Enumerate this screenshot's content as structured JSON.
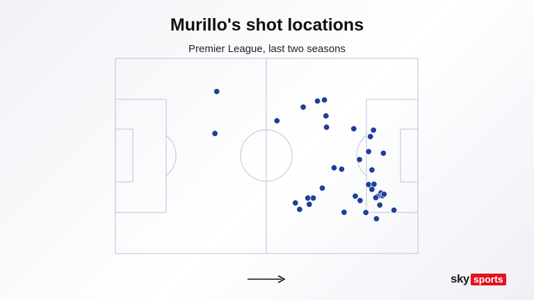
{
  "header": {
    "title": "Murillo's shot locations",
    "subtitle": "Premier League, last two seasons"
  },
  "logo": {
    "part1": "sky",
    "part2": "sports"
  },
  "colors": {
    "shot": "#1f3f99",
    "pitch_line": "#c8cbe0",
    "logo_red": "#e1141e"
  },
  "chart_data": {
    "type": "scatter",
    "title": "Murillo's shot locations",
    "subtitle": "Premier League, last two seasons",
    "xlabel": "",
    "ylabel": "",
    "xlim": [
      0,
      100
    ],
    "ylim": [
      0,
      100
    ],
    "attack_direction": "right",
    "x": [
      33.5,
      32.9,
      53.4,
      62.1,
      66.8,
      69.1,
      69.6,
      69.8,
      72.3,
      74.8,
      68.4,
      80.7,
      78.8,
      83.7,
      84.3,
      85.3,
      88.6,
      83.7,
      84.8,
      82.8,
      86.3,
      87.4,
      87.8,
      88.3,
      86.6,
      88.8,
      85.5,
      86.1,
      79.3,
      80.9,
      84.8,
      75.6,
      65.4,
      63.6,
      64.1,
      59.5,
      60.9,
      92.1
    ],
    "y": [
      17,
      38.5,
      32,
      25,
      21.9,
      21.3,
      29.5,
      35.3,
      56.1,
      56.8,
      66.5,
      51.9,
      36.1,
      47.8,
      40.1,
      36.8,
      48.6,
      64.7,
      57.2,
      79,
      82.2,
      75.2,
      69,
      70.4,
      70.8,
      69.6,
      64.5,
      71.4,
      70.6,
      72.9,
      67.2,
      78.9,
      71.6,
      71.6,
      74.8,
      74.1,
      77.4,
      77.8
    ]
  }
}
